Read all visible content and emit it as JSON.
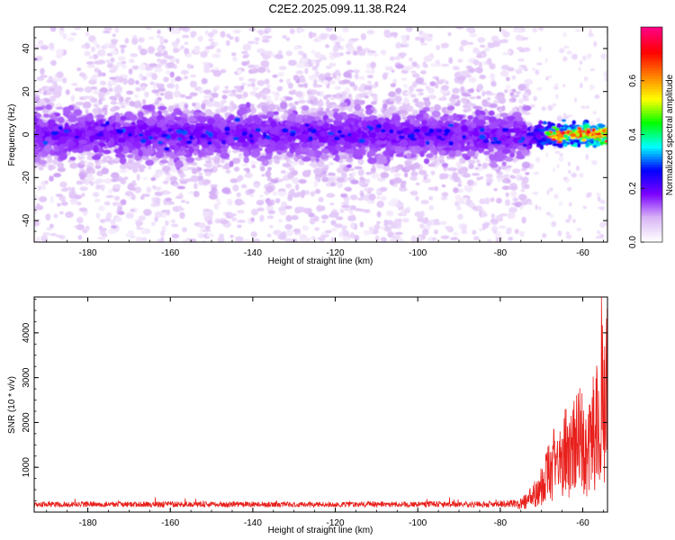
{
  "title": "C2E2.2025.099.11.38.R24",
  "chart_data": [
    {
      "type": "heatmap",
      "xlabel": "Height of straight line (km)",
      "ylabel": "Frequency (Hz)",
      "xlim": [
        -193,
        -54
      ],
      "ylim": [
        -50,
        50
      ],
      "xticks": [
        -180,
        -160,
        -140,
        -120,
        -100,
        -80,
        -60
      ],
      "yticks": [
        -40,
        -20,
        0,
        20,
        40
      ],
      "xtick_labels": [
        "-180",
        "-160",
        "-140",
        "-120",
        "-100",
        "-80",
        "-60"
      ],
      "ytick_labels": [
        "-40",
        "-20",
        "0",
        "20",
        "40"
      ],
      "colorbar": {
        "label": "Normalized spectral amplitude",
        "range": [
          0.0,
          0.8
        ],
        "ticks": [
          0.0,
          0.2,
          0.4,
          0.6
        ],
        "tick_labels": [
          "0.0",
          "0.2",
          "0.4",
          "0.6"
        ],
        "colormap": [
          "#ffffff",
          "#d8b4f5",
          "#7b00ff",
          "#0000ff",
          "#00ffff",
          "#00ff00",
          "#ffff00",
          "#ff8000",
          "#ff0000",
          "#ff0080"
        ]
      },
      "band_center_hz": 0,
      "band_halfwidth_hz": 7,
      "sparse_noise_cutoff_km": -73,
      "strong_signal_start_km": -73,
      "strong_signal_peak_value": 0.75
    },
    {
      "type": "line",
      "xlabel": "Height of straight line (km)",
      "ylabel": "SNR (10 * v/v)",
      "xlim": [
        -193,
        -54
      ],
      "ylim": [
        0,
        4800
      ],
      "xticks": [
        -180,
        -160,
        -140,
        -120,
        -100,
        -80,
        -60
      ],
      "yticks": [
        1000,
        2000,
        3000,
        4000
      ],
      "xtick_labels": [
        "-180",
        "-160",
        "-140",
        "-120",
        "-100",
        "-80",
        "-60"
      ],
      "ytick_labels": [
        "1000",
        "2000",
        "3000",
        "4000"
      ],
      "series": [
        {
          "color": "#e8201c",
          "x": [
            -193,
            -190,
            -185,
            -180,
            -175,
            -170,
            -165,
            -160,
            -155,
            -150,
            -145,
            -140,
            -135,
            -130,
            -125,
            -120,
            -115,
            -110,
            -105,
            -100,
            -95,
            -90,
            -85,
            -80,
            -76,
            -74,
            -72,
            -71,
            -70,
            -69,
            -68,
            -67,
            -66,
            -65,
            -64,
            -63,
            -62,
            -61,
            -60,
            -59,
            -58,
            -57,
            -56,
            -55.5,
            -55,
            -54.5
          ],
          "y": [
            180,
            200,
            190,
            210,
            190,
            200,
            195,
            210,
            200,
            190,
            195,
            205,
            190,
            200,
            195,
            200,
            190,
            205,
            195,
            200,
            210,
            200,
            205,
            220,
            250,
            350,
            600,
            800,
            1000,
            1300,
            1500,
            1700,
            1600,
            1900,
            2300,
            2000,
            2600,
            2500,
            2800,
            2100,
            2500,
            3200,
            2600,
            4800,
            3000,
            4200
          ]
        }
      ]
    }
  ]
}
